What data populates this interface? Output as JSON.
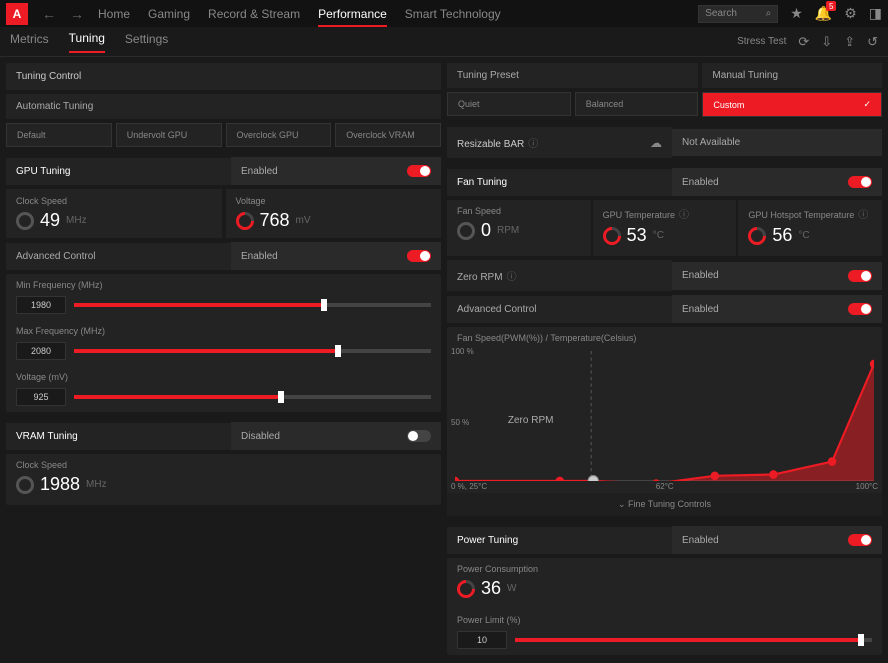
{
  "top": {
    "nav": [
      "Home",
      "Gaming",
      "Record & Stream",
      "Performance",
      "Smart Technology"
    ],
    "active": "Performance",
    "search_placeholder": "Search",
    "notif_count": "5"
  },
  "sub": {
    "tabs": [
      "Metrics",
      "Tuning",
      "Settings"
    ],
    "active": "Tuning",
    "stress": "Stress Test"
  },
  "tuning_control": {
    "title": "Tuning Control"
  },
  "auto": {
    "label": "Automatic Tuning",
    "presets": [
      "Default",
      "Undervolt GPU",
      "Overclock GPU",
      "Overclock VRAM"
    ]
  },
  "preset": {
    "label": "Tuning Preset",
    "items": [
      "Quiet",
      "Balanced"
    ]
  },
  "manual": {
    "label": "Manual Tuning",
    "custom": "Custom"
  },
  "gpu": {
    "title": "GPU Tuning",
    "enabled": "Enabled",
    "clock": {
      "label": "Clock Speed",
      "val": "49",
      "unit": "MHz"
    },
    "volt": {
      "label": "Voltage",
      "val": "768",
      "unit": "mV"
    },
    "adv": "Advanced Control",
    "adv_en": "Enabled",
    "minf": {
      "label": "Min Frequency (MHz)",
      "val": "1980",
      "pct": 70
    },
    "maxf": {
      "label": "Max Frequency (MHz)",
      "val": "2080",
      "pct": 74
    },
    "voltage": {
      "label": "Voltage (mV)",
      "val": "925",
      "pct": 58
    }
  },
  "vram": {
    "title": "VRAM Tuning",
    "disabled": "Disabled",
    "clock": {
      "label": "Clock Speed",
      "val": "1988",
      "unit": "MHz"
    }
  },
  "resbar": {
    "title": "Resizable BAR",
    "na": "Not Available"
  },
  "fan": {
    "title": "Fan Tuning",
    "enabled": "Enabled",
    "speed": {
      "label": "Fan Speed",
      "val": "0",
      "unit": "RPM"
    },
    "temp": {
      "label": "GPU Temperature",
      "val": "53",
      "unit": "°C"
    },
    "hot": {
      "label": "GPU Hotspot Temperature",
      "val": "56",
      "unit": "°C"
    },
    "zero": "Zero RPM",
    "zero_en": "Enabled",
    "adv": "Advanced Control",
    "adv_en": "Enabled",
    "chart_title": "Fan Speed(PWM(%)) / Temperature(Celsius)",
    "y100": "100 %",
    "y50": "50 %",
    "y0": "0 %, 25°C",
    "x62": "62°C",
    "x100": "100°C",
    "zero_lbl": "Zero RPM",
    "fine": "Fine Tuning Controls",
    "curve": {
      "points": [
        [
          0,
          100
        ],
        [
          25,
          100
        ],
        [
          33,
          100
        ],
        [
          48,
          102
        ],
        [
          62,
          96
        ],
        [
          76,
          95
        ],
        [
          90,
          85
        ],
        [
          100,
          10
        ]
      ],
      "color": "#ed1c24"
    }
  },
  "power": {
    "title": "Power Tuning",
    "enabled": "Enabled",
    "cons": {
      "label": "Power Consumption",
      "val": "36",
      "unit": "W"
    },
    "limit": {
      "label": "Power Limit (%)",
      "val": "10",
      "pct": 97
    }
  }
}
